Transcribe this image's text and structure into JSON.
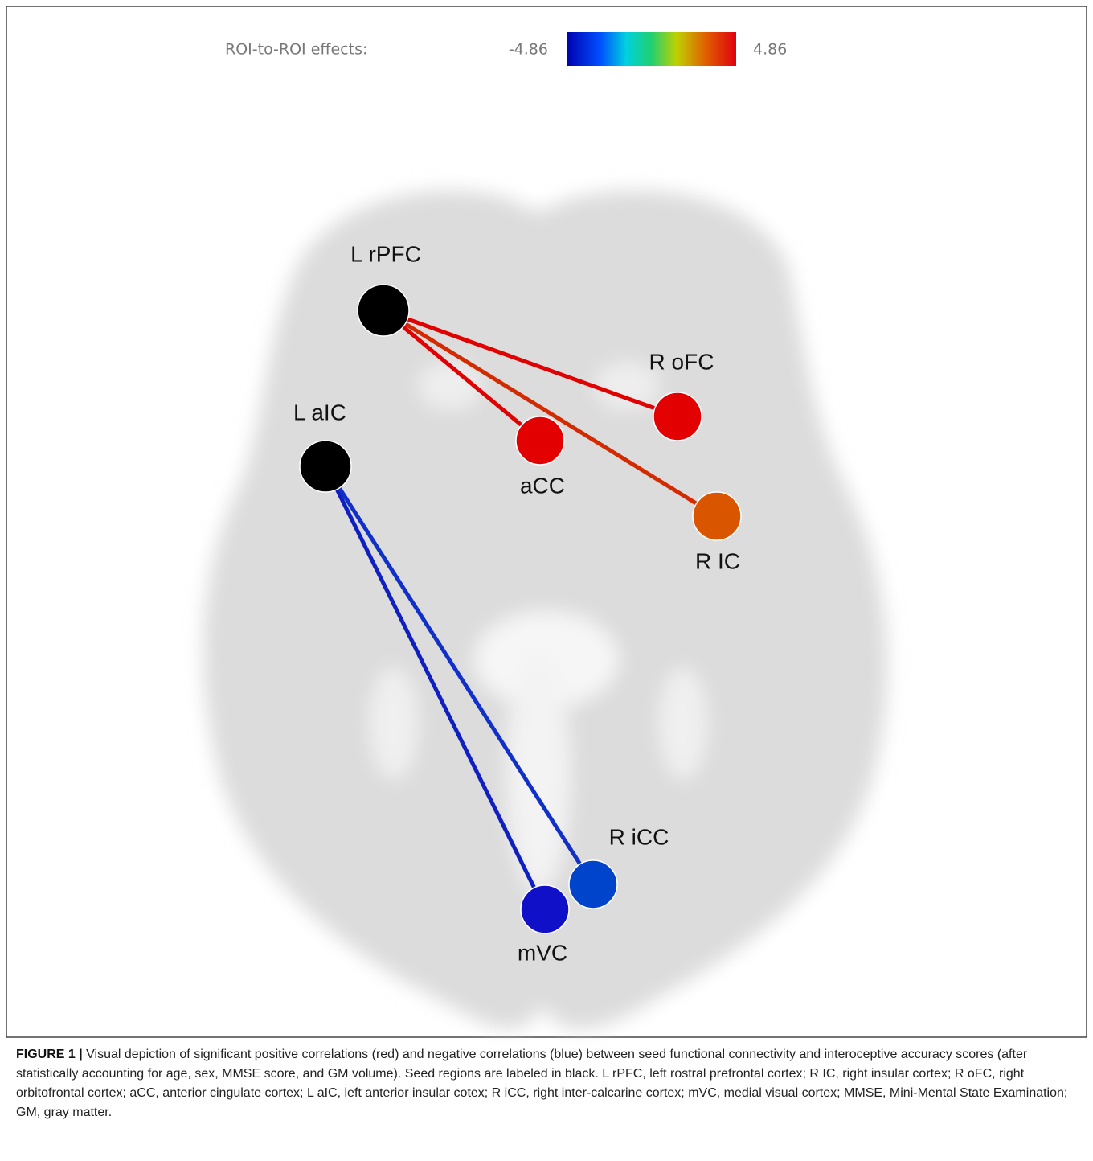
{
  "legend": {
    "label": "ROI-to-ROI effects:",
    "min_label": "-4.86",
    "max_label": "4.86"
  },
  "nodes": [
    {
      "label": "L rPFC"
    },
    {
      "label": "R oFC"
    },
    {
      "label": "L aIC"
    },
    {
      "label": "aCC"
    },
    {
      "label": "R IC"
    },
    {
      "label": "R iCC"
    },
    {
      "label": "mVC"
    }
  ],
  "caption": {
    "label": "FIGURE 1 |",
    "text": "Visual depiction of significant positive correlations (red) and negative correlations (blue) between seed functional connectivity and interoceptive accuracy scores (after statistically accounting for age, sex, MMSE score, and GM volume). Seed regions are labeled in black. L rPFC, left rostral prefrontal cortex; R IC, right insular cortex; R oFC, right orbitofrontal cortex; aCC, anterior cingulate cortex; L aIC, left anterior insular cotex; R iCC, right inter-calcarine cortex; mVC, medial visual cortex; MMSE, Mini-Mental State Examination; GM, gray matter."
  }
}
